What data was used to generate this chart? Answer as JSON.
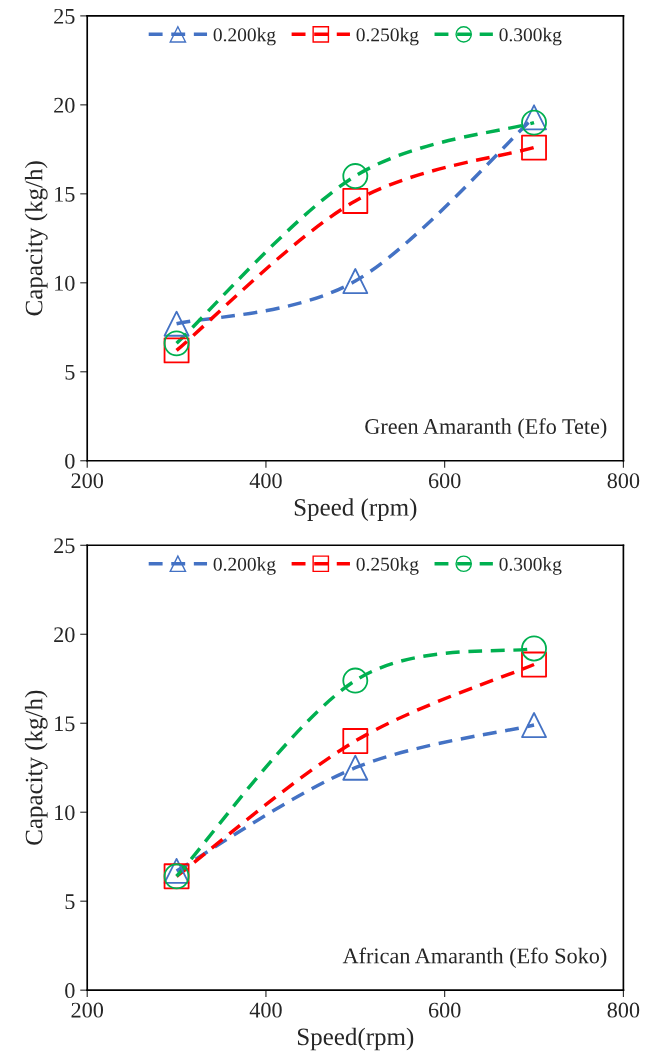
{
  "chart_data": [
    {
      "type": "line",
      "xlabel": "Speed (rpm)",
      "ylabel": "Capacity (kg/h)",
      "x": [
        300,
        500,
        700
      ],
      "xlim": [
        200,
        800
      ],
      "xticks": [
        200,
        400,
        600,
        800
      ],
      "ylim": [
        0,
        25
      ],
      "yticks": [
        0,
        5,
        10,
        15,
        20,
        25
      ],
      "grid": false,
      "legend": "top",
      "line_style": "dashed",
      "annotations": [
        "Green Amaranth (Efo Tete)"
      ],
      "series": [
        {
          "name": "0.200kg",
          "color": "#4472c4",
          "marker": "triangle",
          "values": [
            7.7,
            10.1,
            19.3
          ]
        },
        {
          "name": "0.250kg",
          "color": "#ff0000",
          "marker": "square",
          "values": [
            6.2,
            14.6,
            17.6
          ]
        },
        {
          "name": "0.300kg",
          "color": "#00b050",
          "marker": "circle",
          "values": [
            6.6,
            16.0,
            19.0
          ]
        }
      ]
    },
    {
      "type": "line",
      "xlabel": "Speed(rpm)",
      "ylabel": "Capacity (kg/h)",
      "x": [
        300,
        500,
        700
      ],
      "xlim": [
        200,
        800
      ],
      "xticks": [
        200,
        400,
        600,
        800
      ],
      "ylim": [
        0,
        25
      ],
      "yticks": [
        0,
        5,
        10,
        15,
        20,
        25
      ],
      "grid": false,
      "legend": "top",
      "line_style": "dashed",
      "annotations": [
        "African Amaranth (Efo Soko)"
      ],
      "series": [
        {
          "name": "0.200kg",
          "color": "#4472c4",
          "marker": "triangle",
          "values": [
            6.7,
            12.5,
            14.9
          ]
        },
        {
          "name": "0.250kg",
          "color": "#ff0000",
          "marker": "square",
          "values": [
            6.4,
            14.0,
            18.3
          ]
        },
        {
          "name": "0.300kg",
          "color": "#00b050",
          "marker": "circle",
          "values": [
            6.4,
            17.4,
            19.2
          ]
        }
      ]
    }
  ]
}
